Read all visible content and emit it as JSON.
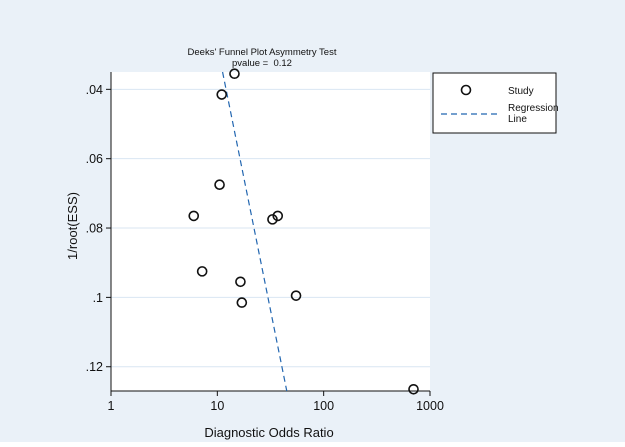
{
  "chart_data": {
    "type": "scatter",
    "title": "Deeks' Funnel Plot Asymmetry Test",
    "subtitle": "pvalue =  0.12",
    "xlabel": "Diagnostic Odds Ratio",
    "ylabel": "1/root(ESS)",
    "x_scale": "log",
    "xlim": [
      1,
      1000
    ],
    "ylim": [
      0.127,
      0.035
    ],
    "y_reversed": true,
    "x_ticks": [
      {
        "value": 1,
        "label": "1"
      },
      {
        "value": 10,
        "label": "10"
      },
      {
        "value": 100,
        "label": "100"
      },
      {
        "value": 1000,
        "label": "1000"
      }
    ],
    "y_ticks": [
      {
        "value": 0.04,
        "label": ".04"
      },
      {
        "value": 0.06,
        "label": ".06"
      },
      {
        "value": 0.08,
        "label": ".08"
      },
      {
        "value": 0.1,
        "label": ".1"
      },
      {
        "value": 0.12,
        "label": ".12"
      }
    ],
    "grid": "horizontal",
    "series": [
      {
        "name": "Study",
        "marker": "hollow-circle",
        "points": [
          {
            "x": 14.5,
            "y": 0.0355
          },
          {
            "x": 11,
            "y": 0.0415
          },
          {
            "x": 10.5,
            "y": 0.0675
          },
          {
            "x": 6,
            "y": 0.0765
          },
          {
            "x": 7.2,
            "y": 0.0925
          },
          {
            "x": 33,
            "y": 0.0775
          },
          {
            "x": 37,
            "y": 0.0765
          },
          {
            "x": 16.5,
            "y": 0.0955
          },
          {
            "x": 17,
            "y": 0.1015
          },
          {
            "x": 55,
            "y": 0.0995
          },
          {
            "x": 700,
            "y": 0.1265
          }
        ]
      },
      {
        "name": "Regression Line",
        "line": "dashed",
        "points": [
          {
            "x": 11.2,
            "y": 0.035
          },
          {
            "x": 45,
            "y": 0.127
          }
        ]
      }
    ],
    "legend": {
      "position": "right",
      "entries": [
        "Study",
        "Regression Line"
      ]
    }
  },
  "colors": {
    "background": "#eaf1f8",
    "panel": "#ffffff",
    "grid": "#d9e6f2",
    "regression": "#2266b0",
    "ink": "#111111"
  }
}
